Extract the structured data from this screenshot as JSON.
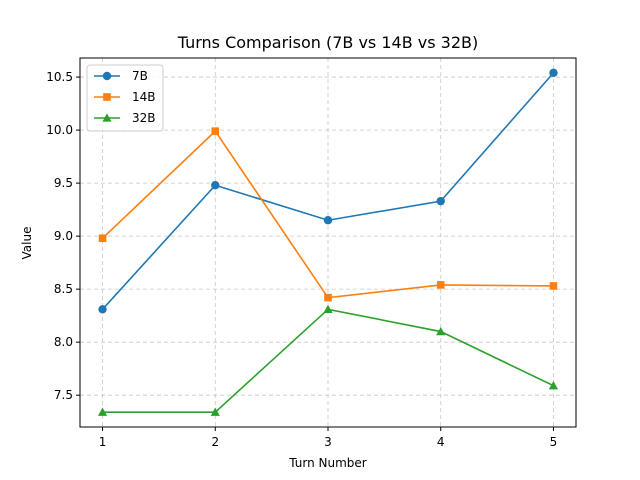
{
  "chart_data": {
    "type": "line",
    "title": "Turns Comparison (7B vs 14B vs 32B)",
    "xlabel": "Turn Number",
    "ylabel": "Value",
    "x": [
      1,
      2,
      3,
      4,
      5
    ],
    "xticks": [
      "1",
      "2",
      "3",
      "4",
      "5"
    ],
    "yticks": [
      "7.5",
      "8.0",
      "8.5",
      "9.0",
      "9.5",
      "10.0",
      "10.5"
    ],
    "ylim": [
      7.2,
      10.68
    ],
    "xlim": [
      0.8,
      5.2
    ],
    "grid": true,
    "legend_position": "upper-left",
    "series": [
      {
        "name": "7B",
        "values": [
          8.31,
          9.48,
          9.15,
          9.33,
          10.54
        ],
        "color": "#1f77b4",
        "marker": "circle"
      },
      {
        "name": "14B",
        "values": [
          8.98,
          9.99,
          8.42,
          8.54,
          8.53
        ],
        "color": "#ff7f0e",
        "marker": "square"
      },
      {
        "name": "32B",
        "values": [
          7.34,
          7.34,
          8.31,
          8.1,
          7.59
        ],
        "color": "#2ca02c",
        "marker": "triangle"
      }
    ]
  }
}
